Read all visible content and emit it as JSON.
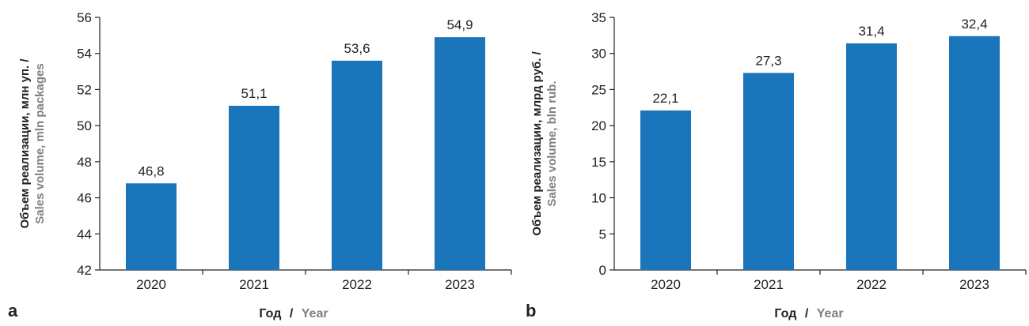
{
  "chart_data": [
    {
      "panel_label": "a",
      "type": "bar",
      "categories": [
        "2020",
        "2021",
        "2022",
        "2023"
      ],
      "values": [
        46.8,
        51.1,
        53.6,
        54.9
      ],
      "value_labels": [
        "46,8",
        "51,1",
        "53,6",
        "54,9"
      ],
      "ylim": [
        42,
        56
      ],
      "yticks": [
        42,
        44,
        46,
        48,
        50,
        52,
        54,
        56
      ],
      "ylabel_ru": "Объем реализации, млн уп. /",
      "ylabel_en": "Sales volume, mln packages",
      "xlabel_ru": "Год",
      "xlabel_sep": "/",
      "xlabel_en": "Year",
      "bar_color": "#1b75bb"
    },
    {
      "panel_label": "b",
      "type": "bar",
      "categories": [
        "2020",
        "2021",
        "2022",
        "2023"
      ],
      "values": [
        22.1,
        27.3,
        31.4,
        32.4
      ],
      "value_labels": [
        "22,1",
        "27,3",
        "31,4",
        "32,4"
      ],
      "ylim": [
        0,
        35
      ],
      "yticks": [
        0,
        5,
        10,
        15,
        20,
        25,
        30,
        35
      ],
      "ylabel_ru": "Объем реализации, млрд руб. /",
      "ylabel_en": "Sales volume, bln rub.",
      "xlabel_ru": "Год",
      "xlabel_sep": "/",
      "xlabel_en": "Year",
      "bar_color": "#1b75bb"
    }
  ]
}
